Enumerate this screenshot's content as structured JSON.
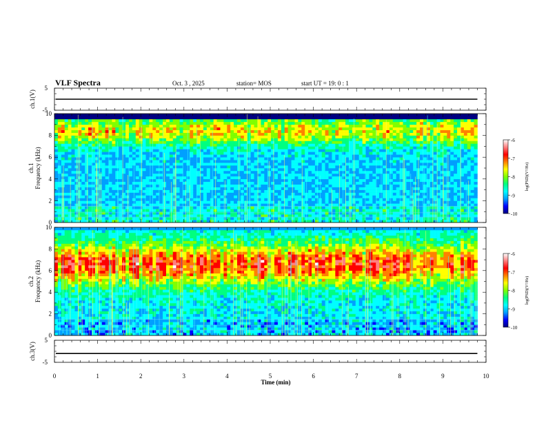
{
  "header": {
    "title": "VLF Spectra",
    "date": "Oct. 3 , 2025",
    "station": "station= MOS",
    "start_ut": "start  UT  =   19: 0  : 1"
  },
  "chart_data": [
    {
      "type": "line",
      "name": "ch1-waveform",
      "ylabel": "ch.1(V)",
      "ylim": [
        -5,
        5
      ],
      "yticks": [
        "5",
        "-5"
      ],
      "xlim": [
        0,
        10
      ],
      "baseline": 0
    },
    {
      "type": "heatmap",
      "name": "ch1-spectrogram",
      "ylabel": "ch.1\nFrequency (kHz)",
      "ylim": [
        0,
        10
      ],
      "yticks": [
        "0",
        "2",
        "4",
        "6",
        "8",
        "10"
      ],
      "xlim": [
        0,
        10
      ],
      "data_extent_min": 9.8,
      "band_center_khz": 8.4,
      "colorbar": {
        "label": "log(PSD)(V²/Hz)",
        "ticks": [
          "-6",
          "-7",
          "-8",
          "-9",
          "-10"
        ],
        "range": [
          -10,
          -6
        ]
      }
    },
    {
      "type": "heatmap",
      "name": "ch2-spectrogram",
      "ylabel": "ch.2\nFrequency (kHz)",
      "ylim": [
        0,
        10
      ],
      "yticks": [
        "0",
        "2",
        "4",
        "6",
        "8",
        "10"
      ],
      "xlim": [
        0,
        10
      ],
      "data_extent_min": 9.8,
      "band_center_khz": 6.6,
      "colorbar": {
        "label": "log(PSD)(V²/Hz)",
        "ticks": [
          "-6",
          "-7",
          "-8",
          "-9",
          "-10"
        ],
        "range": [
          -10,
          -6
        ]
      }
    },
    {
      "type": "line",
      "name": "ch3-waveform",
      "ylabel": "ch.3(V)",
      "ylim": [
        -5,
        5
      ],
      "yticks": [
        "5",
        "-5"
      ],
      "xlim": [
        0,
        10
      ],
      "baseline": -1,
      "xlabel": "Time (min)",
      "xticks": [
        "0",
        "1",
        "2",
        "3",
        "4",
        "5",
        "6",
        "7",
        "8",
        "9",
        "10"
      ]
    }
  ],
  "colors": {
    "colormap": [
      "#000080",
      "#0000ff",
      "#00a0ff",
      "#00ffff",
      "#00ff80",
      "#80ff00",
      "#ffff00",
      "#ff8000",
      "#ff0000",
      "#ff8080",
      "#ffffff"
    ]
  }
}
